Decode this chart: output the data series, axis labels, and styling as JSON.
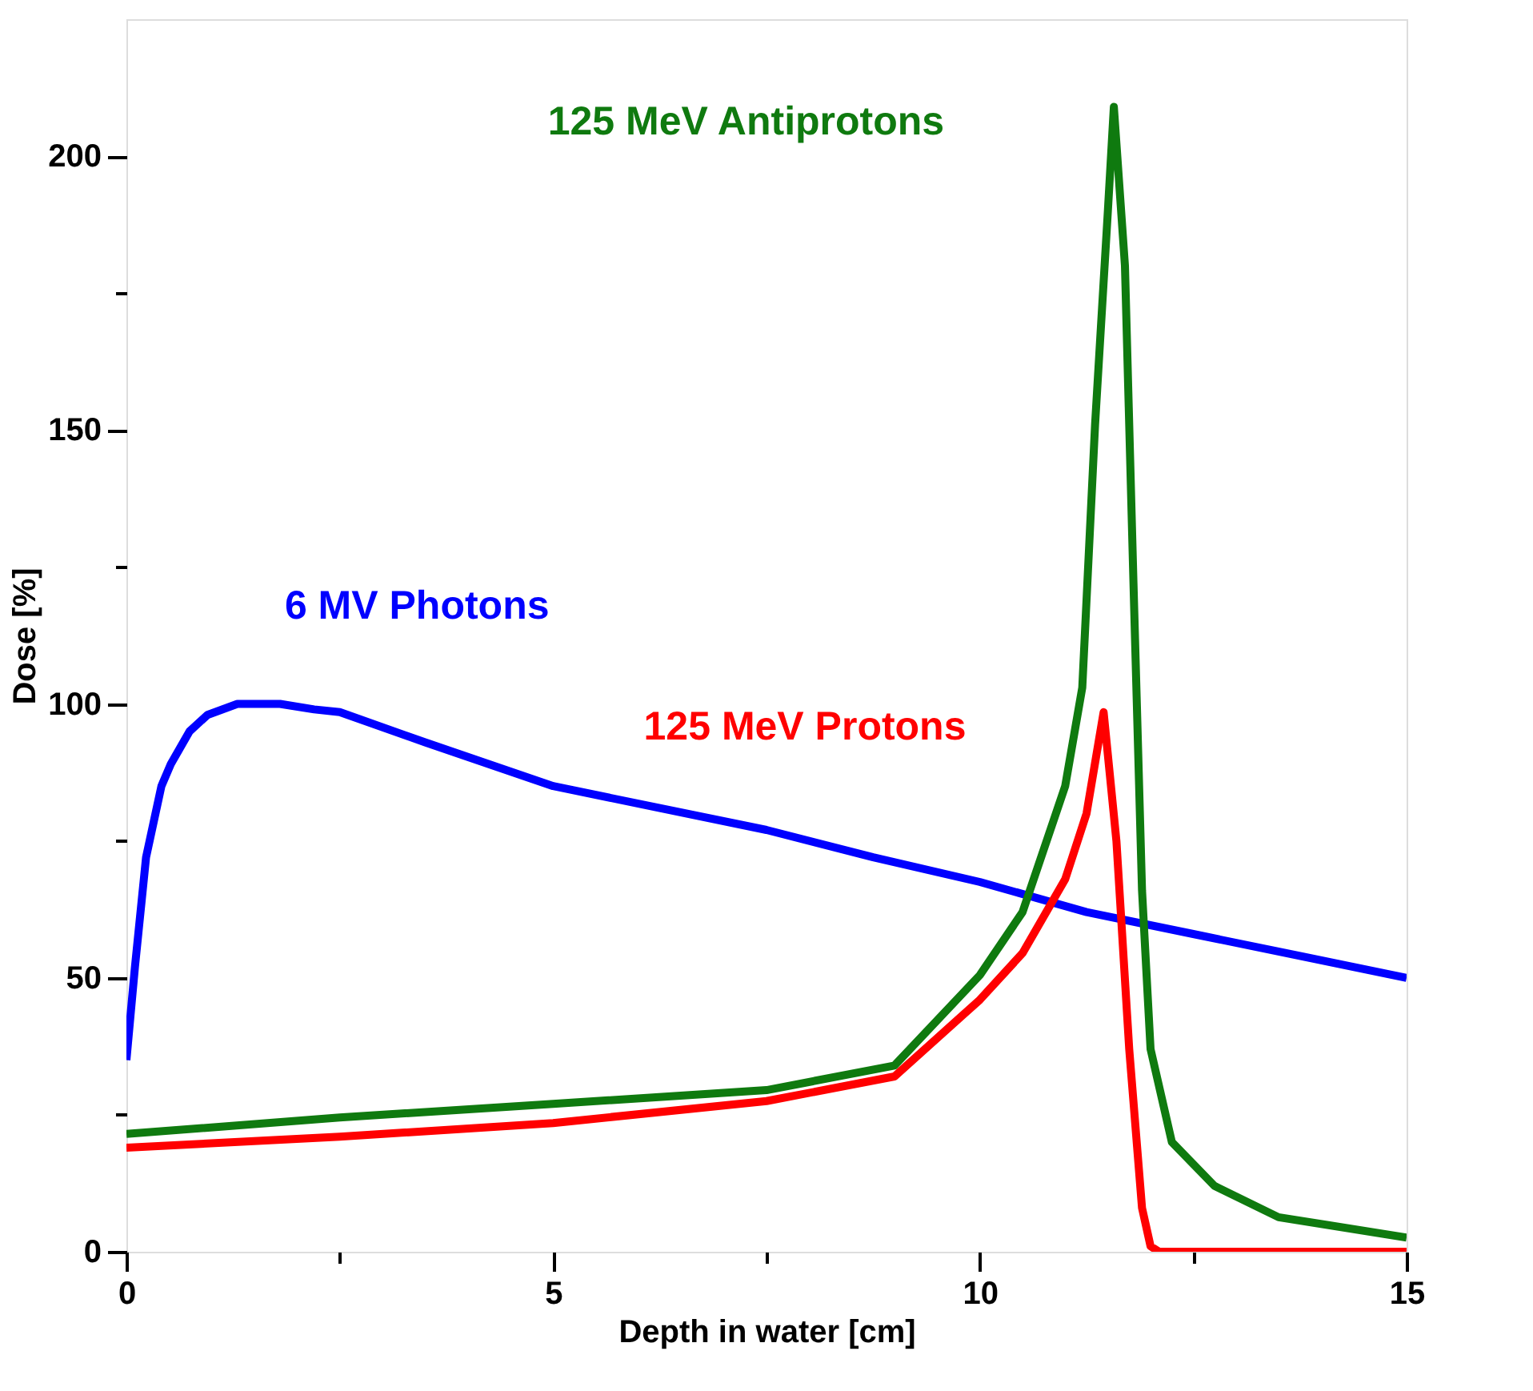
{
  "chart_data": {
    "type": "line",
    "xlabel": "Depth in water [cm]",
    "ylabel": "Dose [%]",
    "xlim": [
      0,
      15
    ],
    "ylim": [
      0,
      225
    ],
    "xticks": [
      0,
      {
        "value": 2.5,
        "label": null
      },
      5,
      {
        "value": 7.5,
        "label": null
      },
      10,
      {
        "value": 12.5,
        "label": null
      },
      15
    ],
    "yticks": [
      0,
      {
        "value": 25,
        "label": null
      },
      50,
      {
        "value": 75,
        "label": null
      },
      100,
      {
        "value": 125,
        "label": null
      },
      150,
      {
        "value": 175,
        "label": null
      },
      200
    ],
    "grid": false,
    "legend": false,
    "marker": "none",
    "line_style": "solid",
    "series": [
      {
        "name": "6 MV Photons",
        "color": "#0000ff",
        "x": [
          0,
          0.1,
          0.23,
          0.41,
          0.52,
          0.74,
          0.95,
          1.3,
          1.8,
          2.2,
          2.5,
          3.5,
          5,
          6.25,
          7.5,
          8.75,
          10,
          11.25,
          12.5,
          13.75,
          15
        ],
        "values": [
          35,
          52,
          72,
          85,
          89,
          95,
          98,
          100,
          100,
          99,
          98.5,
          93,
          85,
          81,
          77,
          72,
          67.5,
          62,
          58,
          54,
          50
        ]
      },
      {
        "name": "125 MeV Protons",
        "color": "#ff0000",
        "x": [
          0,
          2.5,
          5,
          7.5,
          9,
          10,
          10.5,
          11,
          11.25,
          11.45,
          11.6,
          11.75,
          11.9,
          12,
          12.1,
          13,
          15
        ],
        "values": [
          19,
          21,
          23.5,
          27.5,
          32,
          46,
          54.5,
          68,
          80,
          98.5,
          75,
          37,
          8,
          1,
          0,
          0,
          0
        ]
      },
      {
        "name": "125 MeV Antiprotons",
        "color": "#0f7a0f",
        "x": [
          0,
          2.5,
          5,
          7.5,
          9,
          10,
          10.5,
          11,
          11.2,
          11.35,
          11.5,
          11.57,
          11.7,
          11.8,
          11.9,
          12,
          12.25,
          12.75,
          13.5,
          15
        ],
        "values": [
          21.5,
          24.5,
          27,
          29.5,
          34,
          50.5,
          62,
          85,
          103,
          151,
          190,
          209,
          180,
          122,
          66,
          37,
          20,
          12,
          6.3,
          2.6
        ]
      }
    ]
  }
}
